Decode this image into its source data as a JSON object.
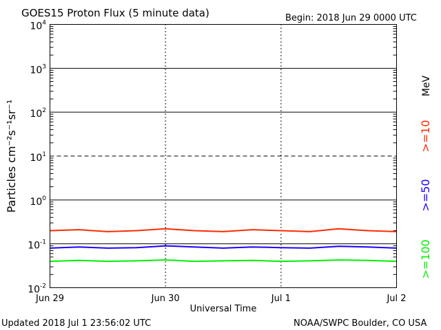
{
  "header": {
    "title": "GOES15 Proton Flux (5 minute data)",
    "begin": "Begin: 2018 Jun 29 0000 UTC"
  },
  "footer": {
    "updated": "Updated 2018 Jul  1 23:56:02 UTC",
    "credit": "NOAA/SWPC Boulder, CO USA"
  },
  "colors": {
    "ge10": "#ff2a00",
    "ge50": "#1a00ff",
    "ge100": "#00f000",
    "grid": "#000000",
    "background": "#ffffff"
  },
  "chart_data": {
    "type": "line",
    "title": "GOES15 Proton Flux (5 minute data)",
    "xlabel": "Universal Time",
    "ylabel": "Particles cm⁻²s⁻¹sr⁻¹",
    "y_scale": "log",
    "ylim": [
      0.01,
      10000
    ],
    "y_ticks": [
      {
        "value": 0.01,
        "base": "10",
        "exp": "-2"
      },
      {
        "value": 0.1,
        "base": "10",
        "exp": "-1"
      },
      {
        "value": 1,
        "base": "10",
        "exp": "0"
      },
      {
        "value": 10,
        "base": "10",
        "exp": "1"
      },
      {
        "value": 100,
        "base": "10",
        "exp": "2"
      },
      {
        "value": 1000,
        "base": "10",
        "exp": "3"
      },
      {
        "value": 10000,
        "base": "10",
        "exp": "4"
      }
    ],
    "x_ticks": [
      "Jun 29",
      "Jun 30",
      "Jul 1",
      "Jul 2"
    ],
    "xlim": [
      "2018-06-29",
      "2018-07-02"
    ],
    "unit_label": "MeV",
    "series": [
      {
        "name": ">=10",
        "color": "#ff2a00",
        "x": [
          "2018-06-29 00:00",
          "2018-06-29 06:00",
          "2018-06-29 12:00",
          "2018-06-29 18:00",
          "2018-06-30 00:00",
          "2018-06-30 06:00",
          "2018-06-30 12:00",
          "2018-06-30 18:00",
          "2018-07-01 00:00",
          "2018-07-01 06:00",
          "2018-07-01 12:00",
          "2018-07-01 18:00",
          "2018-07-02 00:00"
        ],
        "values": [
          0.2,
          0.21,
          0.19,
          0.2,
          0.22,
          0.2,
          0.19,
          0.21,
          0.2,
          0.19,
          0.22,
          0.2,
          0.19
        ]
      },
      {
        "name": ">=50",
        "color": "#1a00ff",
        "x": [
          "2018-06-29 00:00",
          "2018-06-29 06:00",
          "2018-06-29 12:00",
          "2018-06-29 18:00",
          "2018-06-30 00:00",
          "2018-06-30 06:00",
          "2018-06-30 12:00",
          "2018-06-30 18:00",
          "2018-07-01 00:00",
          "2018-07-01 06:00",
          "2018-07-01 12:00",
          "2018-07-01 18:00",
          "2018-07-02 00:00"
        ],
        "values": [
          0.08,
          0.085,
          0.08,
          0.082,
          0.09,
          0.085,
          0.08,
          0.085,
          0.082,
          0.08,
          0.088,
          0.085,
          0.08
        ]
      },
      {
        "name": ">=100",
        "color": "#00f000",
        "x": [
          "2018-06-29 00:00",
          "2018-06-29 06:00",
          "2018-06-29 12:00",
          "2018-06-29 18:00",
          "2018-06-30 00:00",
          "2018-06-30 06:00",
          "2018-06-30 12:00",
          "2018-06-30 18:00",
          "2018-07-01 00:00",
          "2018-07-01 06:00",
          "2018-07-01 12:00",
          "2018-07-01 18:00",
          "2018-07-02 00:00"
        ],
        "values": [
          0.04,
          0.042,
          0.04,
          0.041,
          0.043,
          0.04,
          0.041,
          0.042,
          0.04,
          0.041,
          0.043,
          0.042,
          0.04
        ]
      }
    ],
    "grid": true,
    "dashed_lines": [
      10
    ]
  }
}
